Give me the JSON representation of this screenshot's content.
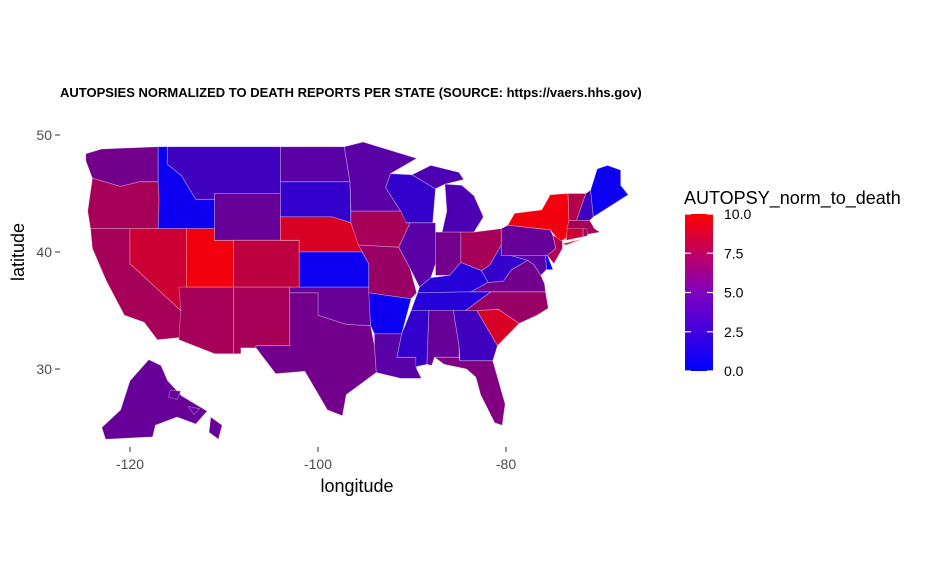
{
  "chart_data": {
    "type": "choropleth",
    "title": "AUTOPSIES NORMALIZED TO DEATH REPORTS PER STATE (SOURCE: https://vaers.hhs.gov)",
    "xlabel": "longitude",
    "ylabel": "latitude",
    "x_ticks": [
      -120,
      -100,
      -80
    ],
    "y_ticks": [
      30,
      40,
      50
    ],
    "legend": {
      "title": "AUTOPSY_norm_to_death",
      "ticks": [
        10.0,
        7.5,
        5.0,
        2.5,
        0.0
      ],
      "tick_labels": [
        "10.0",
        "7.5",
        "5.0",
        "2.5",
        "0.0"
      ],
      "low_color": "#0000ff",
      "high_color": "#ff0000",
      "range": [
        0,
        10
      ]
    },
    "values": {
      "WA": 4.5,
      "OR": 6.5,
      "CA": 6.5,
      "ID": 0.5,
      "NV": 8.0,
      "UT": 9.5,
      "AZ": 6.5,
      "MT": 2.5,
      "WY": 4.0,
      "CO": 7.5,
      "NM": 6.5,
      "ND": 3.5,
      "SD": 2.0,
      "NE": 8.5,
      "KS": 0.5,
      "OK": 4.0,
      "TX": 4.5,
      "MN": 3.5,
      "IA": 6.5,
      "MO": 6.0,
      "AR": 0.5,
      "LA": 3.5,
      "WI": 2.0,
      "IL": 3.5,
      "MI": 3.0,
      "IN": 4.5,
      "OH": 6.5,
      "KY": 1.5,
      "TN": 1.5,
      "MS": 2.0,
      "AL": 4.0,
      "GA": 2.5,
      "FL": 5.0,
      "SC": 8.5,
      "NC": 6.0,
      "VA": 4.5,
      "WV": 2.0,
      "PA": 4.0,
      "NY": 9.5,
      "NJ": 7.0,
      "DE": 0.5,
      "MD": 3.5,
      "VT": 7.0,
      "NH": 2.5,
      "ME": 0.5,
      "MA": 6.5,
      "CT": 8.0,
      "RI": 6.0,
      "AK": 4.0,
      "HI": 4.0
    }
  }
}
